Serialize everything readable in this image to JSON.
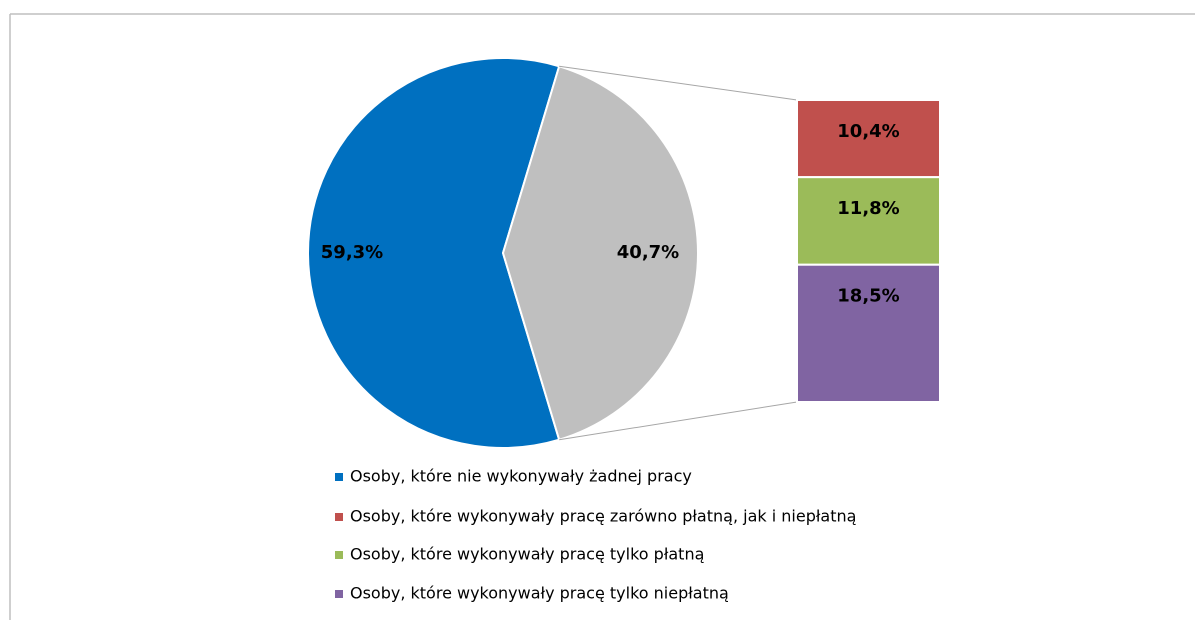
{
  "chart_data": {
    "type": "bar-of-pie",
    "pie": {
      "categories": [
        "Osoby, które nie wykonywały żadnej pracy",
        null
      ],
      "values": [
        59.3,
        40.7
      ],
      "value_labels": [
        "59,3%",
        "40,7%"
      ],
      "colors": [
        "#0070c0",
        "#bfbfbf"
      ]
    },
    "bar": {
      "categories": [
        "Osoby, które wykonywały pracę zarówno płatną, jak i niepłatną",
        "Osoby, które wykonywały pracę tylko płatną",
        "Osoby, które wykonywały pracę tylko niepłatną"
      ],
      "values": [
        10.4,
        11.8,
        18.5
      ],
      "value_labels": [
        "10,4%",
        "11,8%",
        "18,5%"
      ],
      "colors": [
        "#c0504d",
        "#9bbb59",
        "#8064a2"
      ]
    },
    "legend": "bottom"
  }
}
